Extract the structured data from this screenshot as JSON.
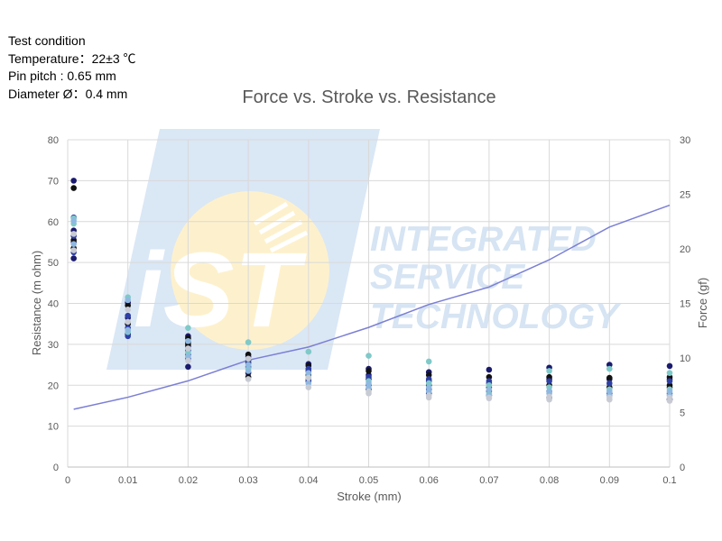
{
  "test_condition": {
    "lines": [
      "Test condition",
      "Temperature：22±3 ℃",
      "Pin pitch : 0.65 mm",
      "Diameter Ø：0.4 mm"
    ]
  },
  "watermark": {
    "logo_text": "iST",
    "company_lines": [
      "INTEGRATED",
      "SERVICE",
      "TECHNOLOGY"
    ]
  },
  "chart_data": {
    "type": "scatter",
    "title": "Force vs. Stroke vs. Resistance",
    "xlabel": "Stroke (mm)",
    "ylabel_left": "Resistance (m ohm)",
    "ylabel_right": "Force (gf)",
    "xlim": [
      0,
      0.1
    ],
    "ylim_left": [
      0,
      80
    ],
    "ylim_right": [
      0,
      30
    ],
    "x_ticks": [
      "0",
      "0.01",
      "0.02",
      "0.03",
      "0.04",
      "0.05",
      "0.06",
      "0.07",
      "0.08",
      "0.09",
      "0.1"
    ],
    "y_left_ticks": [
      "0",
      "10",
      "20",
      "30",
      "40",
      "50",
      "60",
      "70",
      "80"
    ],
    "y_right_ticks": [
      "0",
      "5",
      "10",
      "15",
      "20",
      "25",
      "30"
    ],
    "grid": true,
    "legend": "none",
    "colors": {
      "dark_navy": "#1a1a6e",
      "black": "#111111",
      "blue": "#2e3fa6",
      "light_blue": "#8fb8e0",
      "teal": "#7fc9c9",
      "light_gray": "#c8cbd3",
      "force_line": "#7b7fd4",
      "grid": "#d9d9d9"
    },
    "resistance_series": [
      {
        "x": 0.001,
        "color": "dark_navy",
        "values": [
          70,
          57.8,
          55,
          51
        ]
      },
      {
        "x": 0.001,
        "color": "black",
        "values": [
          68.2,
          55.5,
          53.5
        ]
      },
      {
        "x": 0.001,
        "color": "blue",
        "values": [
          61,
          56.5,
          52.5
        ]
      },
      {
        "x": 0.001,
        "color": "teal",
        "values": [
          60.8,
          59.5
        ]
      },
      {
        "x": 0.001,
        "color": "light_blue",
        "values": [
          60.2,
          54.5
        ]
      },
      {
        "x": 0.001,
        "color": "light_gray",
        "values": [
          57,
          53
        ]
      },
      {
        "x": 0.01,
        "color": "dark_navy",
        "values": [
          40.2,
          36.5,
          32.5
        ]
      },
      {
        "x": 0.01,
        "color": "black",
        "values": [
          39.5,
          35
        ]
      },
      {
        "x": 0.01,
        "color": "blue",
        "values": [
          37,
          34,
          32
        ]
      },
      {
        "x": 0.01,
        "color": "teal",
        "values": [
          41.5,
          33
        ]
      },
      {
        "x": 0.01,
        "color": "light_blue",
        "values": [
          40.8,
          33.5
        ]
      },
      {
        "x": 0.01,
        "color": "light_gray",
        "values": [
          38.5,
          35.5
        ]
      },
      {
        "x": 0.02,
        "color": "dark_navy",
        "values": [
          32,
          29.5,
          24.5
        ]
      },
      {
        "x": 0.02,
        "color": "black",
        "values": [
          31.5,
          30.5,
          30
        ]
      },
      {
        "x": 0.02,
        "color": "blue",
        "values": [
          28.5,
          27.5,
          26.5
        ]
      },
      {
        "x": 0.02,
        "color": "teal",
        "values": [
          34,
          28
        ]
      },
      {
        "x": 0.02,
        "color": "light_blue",
        "values": [
          30.8,
          27
        ]
      },
      {
        "x": 0.02,
        "color": "light_gray",
        "values": [
          29,
          26
        ]
      },
      {
        "x": 0.03,
        "color": "dark_navy",
        "values": [
          27,
          23
        ]
      },
      {
        "x": 0.03,
        "color": "black",
        "values": [
          27.5,
          25.5,
          22
        ]
      },
      {
        "x": 0.03,
        "color": "blue",
        "values": [
          26,
          24.5
        ]
      },
      {
        "x": 0.03,
        "color": "teal",
        "values": [
          30.5,
          24
        ]
      },
      {
        "x": 0.03,
        "color": "light_blue",
        "values": [
          25,
          23.5
        ]
      },
      {
        "x": 0.03,
        "color": "light_gray",
        "values": [
          26.5,
          21.5
        ]
      },
      {
        "x": 0.04,
        "color": "dark_navy",
        "values": [
          25.2,
          23.5,
          21
        ]
      },
      {
        "x": 0.04,
        "color": "black",
        "values": [
          24.8,
          22.5
        ]
      },
      {
        "x": 0.04,
        "color": "blue",
        "values": [
          24,
          21.5
        ]
      },
      {
        "x": 0.04,
        "color": "teal",
        "values": [
          28.2,
          22
        ]
      },
      {
        "x": 0.04,
        "color": "light_blue",
        "values": [
          23,
          20.5
        ]
      },
      {
        "x": 0.04,
        "color": "light_gray",
        "values": [
          21.8,
          19.5
        ]
      },
      {
        "x": 0.05,
        "color": "dark_navy",
        "values": [
          24,
          22.5,
          19
        ]
      },
      {
        "x": 0.05,
        "color": "black",
        "values": [
          23.5,
          21.5
        ]
      },
      {
        "x": 0.05,
        "color": "blue",
        "values": [
          22,
          20
        ]
      },
      {
        "x": 0.05,
        "color": "teal",
        "values": [
          27.2,
          21
        ]
      },
      {
        "x": 0.05,
        "color": "light_blue",
        "values": [
          20.5,
          19.5
        ]
      },
      {
        "x": 0.05,
        "color": "light_gray",
        "values": [
          18.5,
          18
        ]
      },
      {
        "x": 0.06,
        "color": "dark_navy",
        "values": [
          23.2,
          21,
          18
        ]
      },
      {
        "x": 0.06,
        "color": "black",
        "values": [
          22.5,
          20
        ]
      },
      {
        "x": 0.06,
        "color": "blue",
        "values": [
          21.5,
          19
        ]
      },
      {
        "x": 0.06,
        "color": "teal",
        "values": [
          25.8,
          20.5
        ]
      },
      {
        "x": 0.06,
        "color": "light_blue",
        "values": [
          19.5,
          18.5
        ]
      },
      {
        "x": 0.06,
        "color": "light_gray",
        "values": [
          17.5,
          17
        ]
      },
      {
        "x": 0.07,
        "color": "dark_navy",
        "values": [
          23.8,
          20.5,
          17.5
        ]
      },
      {
        "x": 0.07,
        "color": "black",
        "values": [
          22,
          19.5
        ]
      },
      {
        "x": 0.07,
        "color": "blue",
        "values": [
          21,
          18.5
        ]
      },
      {
        "x": 0.07,
        "color": "teal",
        "values": [
          20,
          18
        ]
      },
      {
        "x": 0.07,
        "color": "light_blue",
        "values": [
          19,
          17.5
        ]
      },
      {
        "x": 0.07,
        "color": "light_gray",
        "values": [
          17,
          16.8
        ]
      },
      {
        "x": 0.08,
        "color": "dark_navy",
        "values": [
          24.3,
          21.5,
          17
        ]
      },
      {
        "x": 0.08,
        "color": "black",
        "values": [
          22,
          20
        ]
      },
      {
        "x": 0.08,
        "color": "blue",
        "values": [
          21,
          18.5
        ]
      },
      {
        "x": 0.08,
        "color": "teal",
        "values": [
          23.5,
          19.5
        ]
      },
      {
        "x": 0.08,
        "color": "light_blue",
        "values": [
          18.5,
          18
        ]
      },
      {
        "x": 0.08,
        "color": "light_gray",
        "values": [
          17.2,
          16.5
        ]
      },
      {
        "x": 0.09,
        "color": "dark_navy",
        "values": [
          25,
          21.5
        ]
      },
      {
        "x": 0.09,
        "color": "black",
        "values": [
          21.8,
          19.5
        ]
      },
      {
        "x": 0.09,
        "color": "blue",
        "values": [
          20.5,
          18
        ]
      },
      {
        "x": 0.09,
        "color": "teal",
        "values": [
          24,
          19
        ]
      },
      {
        "x": 0.09,
        "color": "light_blue",
        "values": [
          18.5,
          17.5
        ]
      },
      {
        "x": 0.09,
        "color": "light_gray",
        "values": [
          17,
          16.5
        ]
      },
      {
        "x": 0.1,
        "color": "dark_navy",
        "values": [
          24.7,
          21.5,
          16.5
        ]
      },
      {
        "x": 0.1,
        "color": "black",
        "values": [
          22,
          20,
          19.5
        ]
      },
      {
        "x": 0.1,
        "color": "blue",
        "values": [
          21,
          18
        ]
      },
      {
        "x": 0.1,
        "color": "teal",
        "values": [
          23,
          19
        ]
      },
      {
        "x": 0.1,
        "color": "light_blue",
        "values": [
          18.5,
          17.5
        ]
      },
      {
        "x": 0.1,
        "color": "light_gray",
        "values": [
          17,
          16.2
        ]
      }
    ],
    "force_series": {
      "x": [
        0.001,
        0.01,
        0.02,
        0.03,
        0.04,
        0.05,
        0.06,
        0.07,
        0.08,
        0.09,
        0.1
      ],
      "values": [
        5.3,
        6.4,
        7.9,
        9.8,
        11.0,
        12.8,
        14.9,
        16.5,
        19.0,
        22.0,
        24.0
      ]
    }
  }
}
